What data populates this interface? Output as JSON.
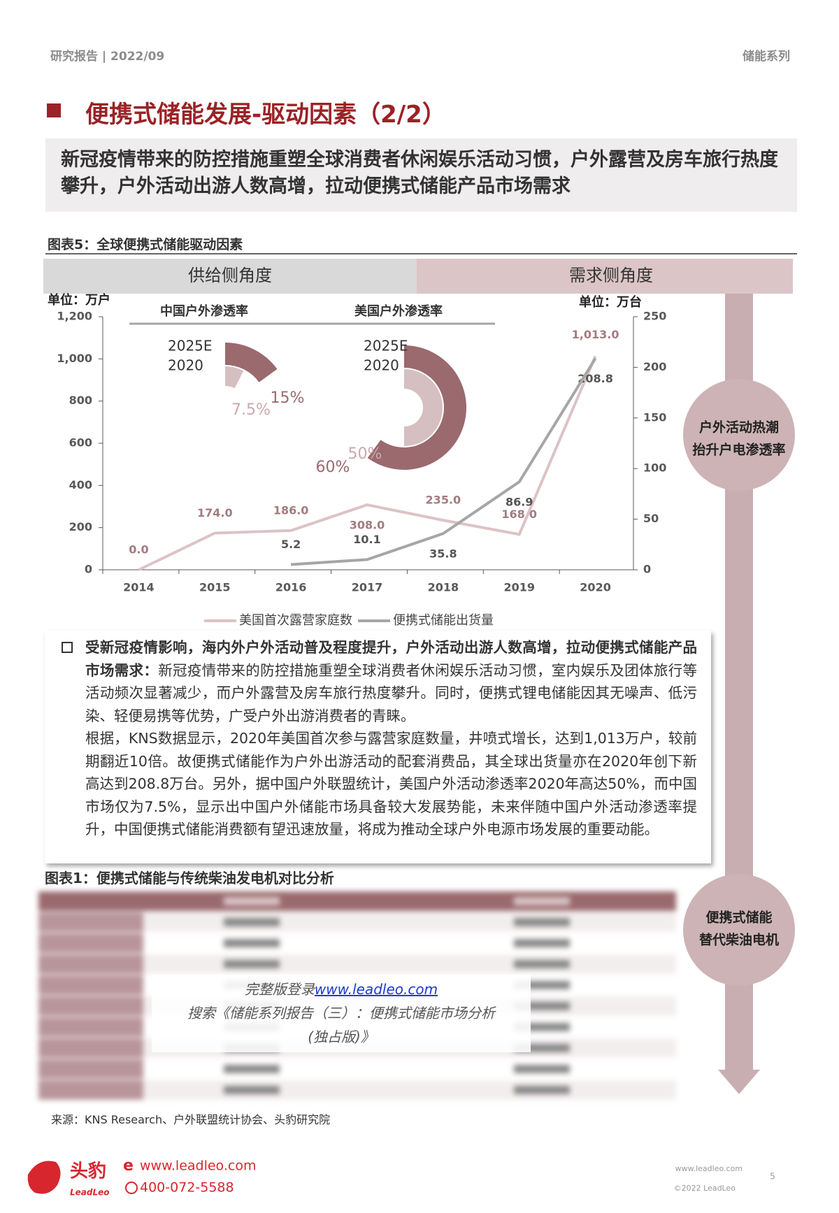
{
  "header": {
    "left": "研究报告 | 2022/09",
    "right": "储能系列"
  },
  "title": "便携式储能发展-驱动因素（2/2）",
  "summary": "新冠疫情带来的防控措施重塑全球消费者休闲娱乐活动习惯，户外露营及房车旅行热度攀升，户外活动出游人数高增，拉动便携式储能产品市场需求",
  "figure5": {
    "caption": "图表5：全球便携式储能驱动因素",
    "tabs": [
      "供给侧角度",
      "需求侧角度"
    ]
  },
  "side_notes": [
    [
      "户外活动热潮",
      "抬升户电渗透率"
    ],
    [
      "便携式储能",
      "替代柴油电机"
    ]
  ],
  "gauges": [
    {
      "title": "中国户外渗透率",
      "labels": [
        "2025E",
        "2020"
      ],
      "values": [
        15,
        7.5
      ],
      "value_labels": [
        "15%",
        "7.5%"
      ]
    },
    {
      "title": "美国户外渗透率",
      "labels": [
        "2025E",
        "2020"
      ],
      "values": [
        60,
        50
      ],
      "value_labels": [
        "60%",
        "50%"
      ]
    }
  ],
  "chart_data": {
    "type": "line",
    "categories": [
      "2014",
      "2015",
      "2016",
      "2017",
      "2018",
      "2019",
      "2020"
    ],
    "ylabel": "单位：万户",
    "y2label": "单位：万台",
    "ylim": [
      0,
      1200
    ],
    "yticks": [
      0,
      200,
      400,
      600,
      800,
      {
        "value": 1000,
        "label": "1,000"
      },
      {
        "value": 1200,
        "label": "1,200"
      }
    ],
    "y2lim": [
      0,
      250
    ],
    "y2ticks": [
      0,
      50,
      100,
      150,
      200,
      250
    ],
    "legend": "bottom",
    "series": [
      {
        "name": "美国首次露营家庭数",
        "color": "#dcc3c5",
        "values": [
          0,
          174,
          186,
          308,
          235,
          168,
          1013
        ],
        "value_labels": [
          "0.0",
          "174.0",
          "186.0",
          "308.0",
          "235.0",
          "168.0",
          "1,013.0"
        ]
      },
      {
        "name": "便携式储能出货量",
        "color": "#a6a6a6",
        "axis": "y2",
        "values": [
          null,
          null,
          5.2,
          10.1,
          35.8,
          86.9,
          208.8
        ]
      }
    ]
  },
  "bullet": {
    "heading": "受新冠疫情影响，海内外户外活动普及程度提升，户外活动出游人数高增，拉动便携式储能产品市场需求：",
    "body": [
      "新冠疫情带来的防控措施重塑全球消费者休闲娱乐活动习惯，室内娱乐及团体旅行等活动频次显著减少，而户外露营及房车旅行热度攀升。同时，便携式锂电储能因其无噪声、低污染、轻便易携等优势，广受户外出游消费者的青睐。",
      "根据，KNS数据显示，2020年美国首次参与露营家庭数量，井喷式增长，达到1,013万户，较前期翻近10倍。故便携式储能作为户外出游活动的配套消费品，其全球出货量亦在2020年创下新高达到208.8万台。另外，据中国户外联盟统计，美国户外活动渗透率2020年高达50%，而中国市场仅为7.5%，显示出中国户外储能市场具备较大发展势能，未来伴随中国户外活动渗透率提升，中国便携式储能消费额有望迅速放量，将成为推动全球户外电源市场发展的重要动能。"
    ]
  },
  "figure1": {
    "caption": "图表1：便携式储能与传统柴油发电机对比分析"
  },
  "watermark": {
    "prefix": "完整版登录",
    "link": "www.leadleo.com",
    "lines": [
      "搜索《储能系列报告（三）：便携式储能市场分析",
      "(独占版)》"
    ]
  },
  "source": "来源：KNS Research、户外联盟统计协会、头豹研究院",
  "footer": {
    "brand": "头豹",
    "brand_en": "LeadLeo",
    "site": "www.leadleo.com",
    "phone": "400-072-5588",
    "site_small": "www.leadleo.com",
    "copyright": "©2022 LeadLeo",
    "page": "5"
  }
}
